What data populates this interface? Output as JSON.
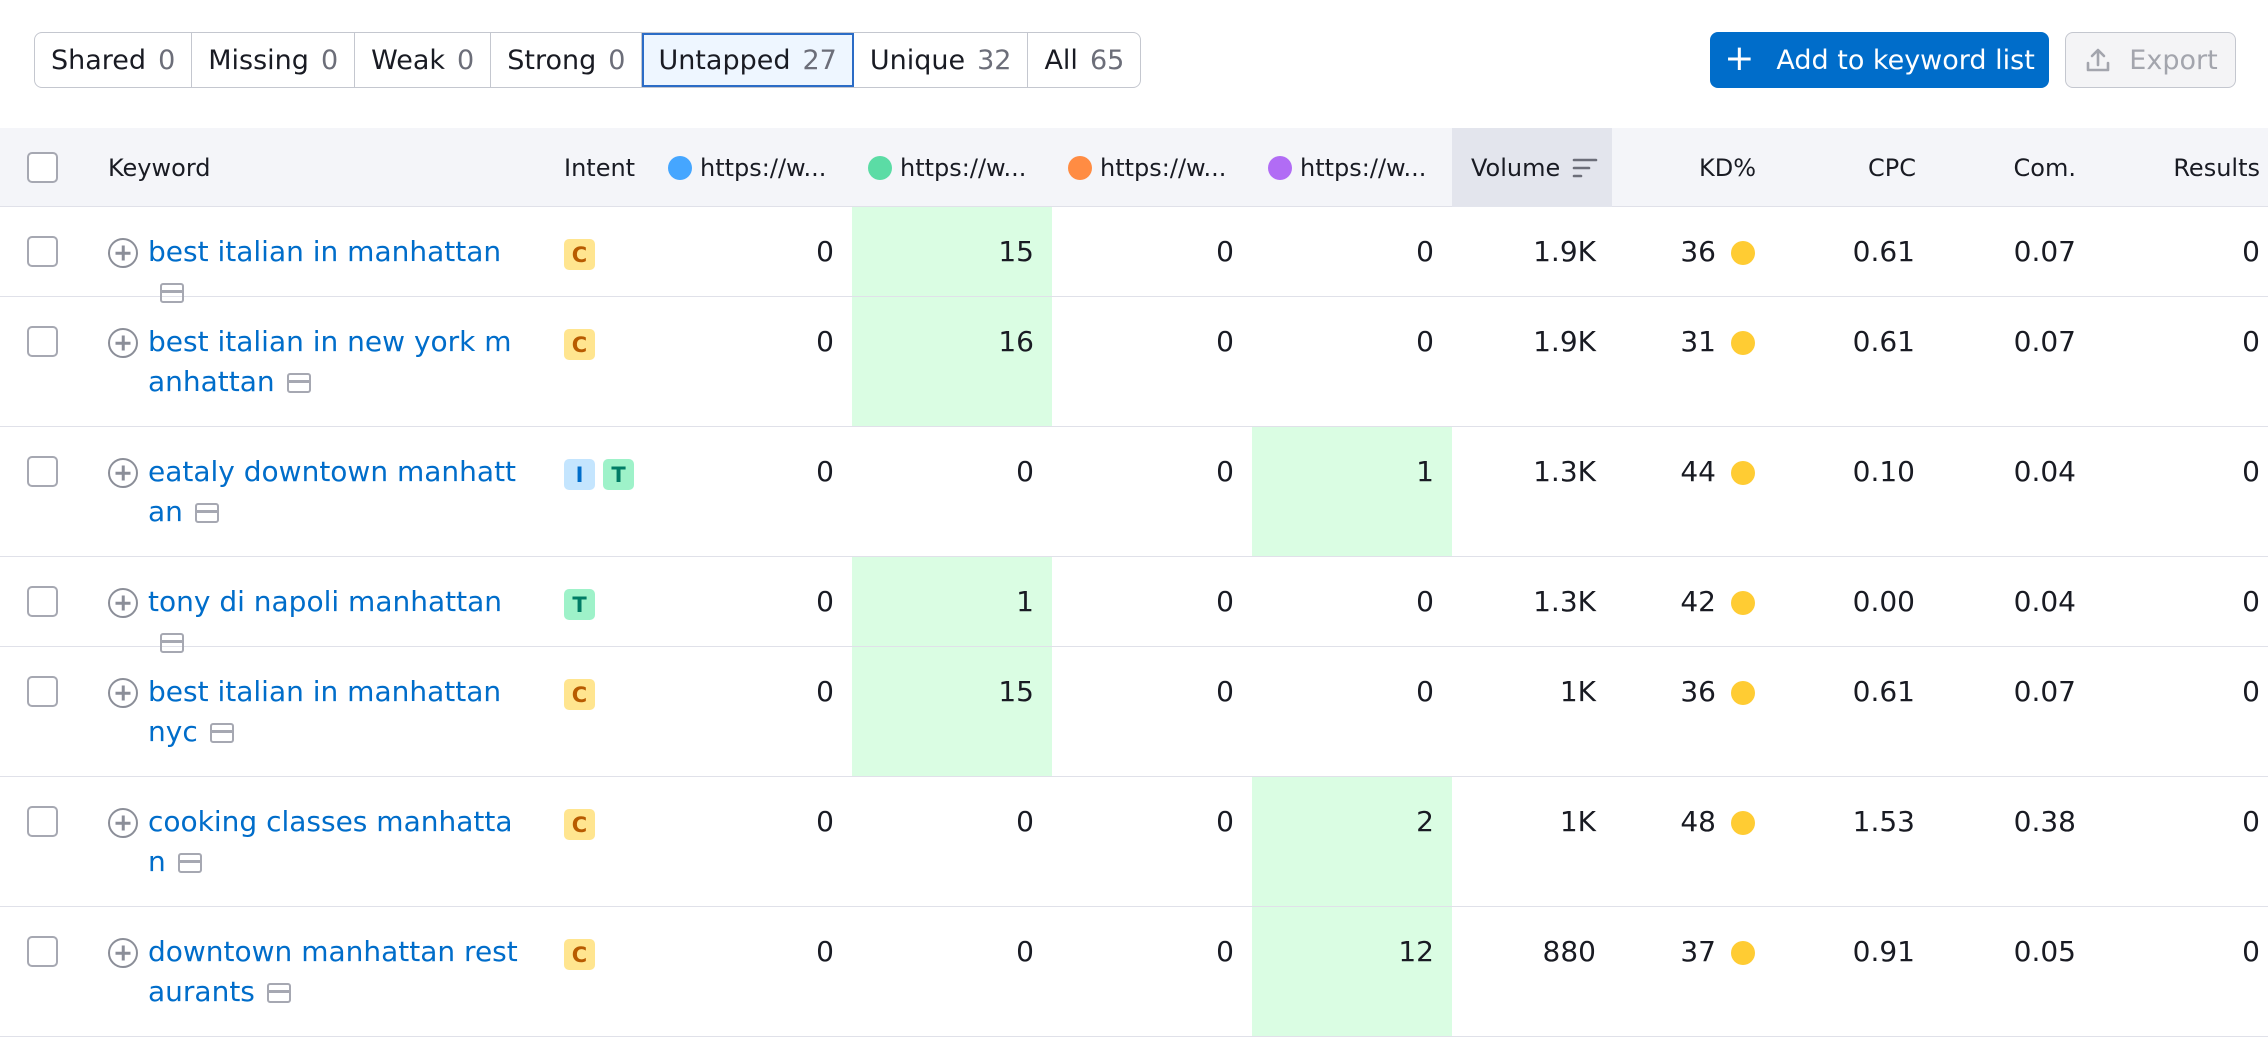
{
  "filters": [
    {
      "label": "Shared",
      "count": "0"
    },
    {
      "label": "Missing",
      "count": "0"
    },
    {
      "label": "Weak",
      "count": "0"
    },
    {
      "label": "Strong",
      "count": "0"
    },
    {
      "label": "Untapped",
      "count": "27",
      "active": true
    },
    {
      "label": "Unique",
      "count": "32"
    },
    {
      "label": "All",
      "count": "65"
    }
  ],
  "toolbar": {
    "add_label": "Add to keyword list",
    "export_label": "Export"
  },
  "columns": {
    "keyword": "Keyword",
    "intent": "Intent",
    "domains": [
      {
        "label": "https://w...",
        "color": "#45a6ff"
      },
      {
        "label": "https://w...",
        "color": "#5bdca5"
      },
      {
        "label": "https://w...",
        "color": "#ff8c43"
      },
      {
        "label": "https://w...",
        "color": "#b16cf5"
      }
    ],
    "volume": "Volume",
    "kd": "KD%",
    "cpc": "CPC",
    "com": "Com.",
    "results": "Results"
  },
  "colors": {
    "accent": "#006dca",
    "highlight": "#dafde3",
    "kd_dot": "#ffcc33"
  },
  "rows": [
    {
      "keyword": "best italian in manhattan",
      "intents": [
        "C"
      ],
      "positions": [
        "0",
        "15",
        "0",
        "0"
      ],
      "best": 1,
      "volume": "1.9K",
      "kd": "36",
      "cpc": "0.61",
      "com": "0.07",
      "results": "0"
    },
    {
      "keyword": "best italian in new york manhattan",
      "intents": [
        "C"
      ],
      "positions": [
        "0",
        "16",
        "0",
        "0"
      ],
      "best": 1,
      "volume": "1.9K",
      "kd": "31",
      "cpc": "0.61",
      "com": "0.07",
      "results": "0"
    },
    {
      "keyword": "eataly downtown manhattan",
      "intents": [
        "I",
        "T"
      ],
      "positions": [
        "0",
        "0",
        "0",
        "1"
      ],
      "best": 3,
      "volume": "1.3K",
      "kd": "44",
      "cpc": "0.10",
      "com": "0.04",
      "results": "0"
    },
    {
      "keyword": "tony di napoli manhattan",
      "intents": [
        "T"
      ],
      "positions": [
        "0",
        "1",
        "0",
        "0"
      ],
      "best": 1,
      "volume": "1.3K",
      "kd": "42",
      "cpc": "0.00",
      "com": "0.04",
      "results": "0"
    },
    {
      "keyword": "best italian in manhattan nyc",
      "intents": [
        "C"
      ],
      "positions": [
        "0",
        "15",
        "0",
        "0"
      ],
      "best": 1,
      "volume": "1K",
      "kd": "36",
      "cpc": "0.61",
      "com": "0.07",
      "results": "0"
    },
    {
      "keyword": "cooking classes manhattan",
      "intents": [
        "C"
      ],
      "positions": [
        "0",
        "0",
        "0",
        "2"
      ],
      "best": 3,
      "volume": "1K",
      "kd": "48",
      "cpc": "1.53",
      "com": "0.38",
      "results": "0"
    },
    {
      "keyword": "downtown manhattan restaurants",
      "intents": [
        "C"
      ],
      "positions": [
        "0",
        "0",
        "0",
        "12"
      ],
      "best": 3,
      "volume": "880",
      "kd": "37",
      "cpc": "0.91",
      "com": "0.05",
      "results": "0"
    }
  ]
}
